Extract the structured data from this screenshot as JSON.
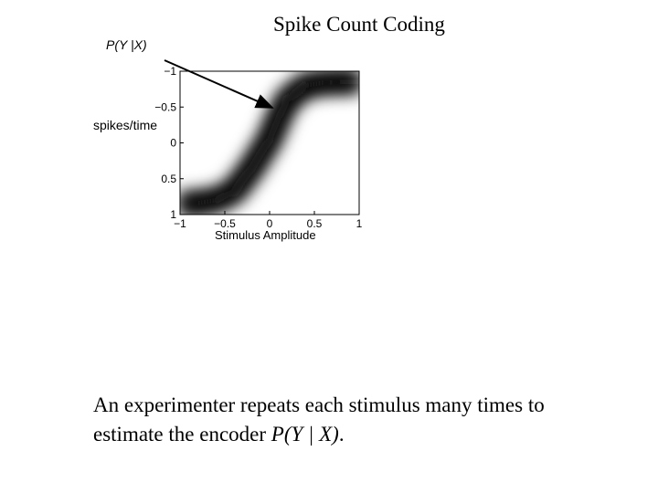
{
  "page": {
    "title": "Spike Count Coding",
    "caption_prefix": "An experimenter repeats each stimulus many times to estimate the encoder ",
    "caption_math": "P(Y | X)",
    "caption_suffix": "."
  },
  "annotation": {
    "label": "P(Y |X)"
  },
  "chart_data": {
    "type": "heatmap",
    "description_of_data": "grayscale density P(Y|X); dark band follows a sigmoid",
    "xlabel": "Stimulus Amplitude",
    "ylabel": "spikes/time",
    "xlim": [
      -1,
      1
    ],
    "ylim": [
      -1,
      1
    ],
    "x_ticks": [
      {
        "value": -1,
        "label": "−1"
      },
      {
        "value": -0.5,
        "label": "−0.5"
      },
      {
        "value": 0,
        "label": "0"
      },
      {
        "value": 0.5,
        "label": "0.5"
      },
      {
        "value": 1,
        "label": "1"
      }
    ],
    "y_ticks": [
      {
        "value": -1,
        "label": "−1"
      },
      {
        "value": -0.5,
        "label": "−0.5"
      },
      {
        "value": 0,
        "label": "0"
      },
      {
        "value": 0.5,
        "label": "0.5"
      },
      {
        "value": 1,
        "label": "1"
      }
    ],
    "y_axis_reversed": true,
    "curve": {
      "x": [
        -1,
        -0.8,
        -0.6,
        -0.4,
        -0.2,
        -0.1,
        0,
        0.1,
        0.2,
        0.4,
        0.6,
        0.8,
        1
      ],
      "y": [
        0.85,
        0.84,
        0.8,
        0.68,
        0.35,
        0.15,
        -0.05,
        -0.35,
        -0.6,
        -0.8,
        -0.84,
        -0.85,
        -0.85
      ]
    },
    "colormap": "gray",
    "grid": false
  }
}
